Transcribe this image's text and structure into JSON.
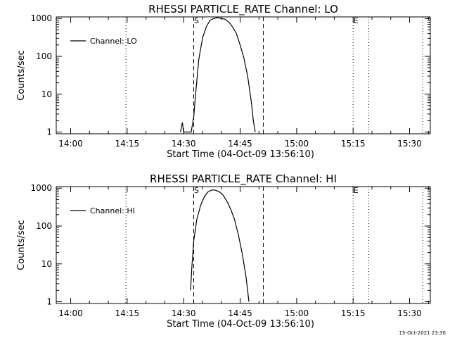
{
  "footer": {
    "timestamp": "15-Oct-2021 23:30"
  },
  "chart_data": [
    {
      "type": "line",
      "title": "RHESSI PARTICLE_RATE Channel: LO",
      "xlabel": "Start Time (04-Oct-09 13:56:10)",
      "ylabel": "Counts/sec",
      "yscale": "log",
      "ylim": [
        0.9,
        1100
      ],
      "xlim": [
        "13:56:10",
        "15:35:30"
      ],
      "xticks": [
        "14:00",
        "14:15",
        "14:30",
        "14:45",
        "15:00",
        "15:15",
        "15:30"
      ],
      "yticks": [
        "1",
        "10",
        "100",
        "1000"
      ],
      "legend": {
        "position": "top-left",
        "entries": [
          "Channel: LO"
        ]
      },
      "markers": [
        {
          "label": "S",
          "time": "14:32:40",
          "style": "dashed"
        },
        {
          "label": "",
          "time": "14:51:10",
          "style": "dashed"
        },
        {
          "label": "E",
          "time": "15:15:00",
          "style": "dotted"
        }
      ],
      "vlines_dotted": [
        "14:14:40",
        "15:19:10",
        "15:33:30"
      ],
      "series": [
        {
          "name": "Channel: LO",
          "points": [
            [
              "14:29:10",
              1.0
            ],
            [
              "14:29:40",
              1.8
            ],
            [
              "14:30:00",
              1.0
            ],
            [
              "14:32:00",
              1.0
            ],
            [
              "14:32:40",
              2.5
            ],
            [
              "14:33:10",
              10
            ],
            [
              "14:34:00",
              80
            ],
            [
              "14:35:00",
              300
            ],
            [
              "14:36:00",
              600
            ],
            [
              "14:37:00",
              900
            ],
            [
              "14:38:00",
              1000
            ],
            [
              "14:39:00",
              1050
            ],
            [
              "14:40:00",
              1000
            ],
            [
              "14:41:00",
              950
            ],
            [
              "14:42:00",
              800
            ],
            [
              "14:43:00",
              600
            ],
            [
              "14:44:00",
              400
            ],
            [
              "14:45:00",
              200
            ],
            [
              "14:46:00",
              90
            ],
            [
              "14:47:00",
              30
            ],
            [
              "14:48:00",
              6
            ],
            [
              "14:48:30",
              2
            ],
            [
              "14:49:00",
              1.0
            ]
          ]
        }
      ]
    },
    {
      "type": "line",
      "title": "RHESSI PARTICLE_RATE Channel: HI",
      "xlabel": "Start Time (04-Oct-09 13:56:10)",
      "ylabel": "Counts/sec",
      "yscale": "log",
      "ylim": [
        0.9,
        1100
      ],
      "xlim": [
        "13:56:10",
        "15:35:30"
      ],
      "xticks": [
        "14:00",
        "14:15",
        "14:30",
        "14:45",
        "15:00",
        "15:15",
        "15:30"
      ],
      "yticks": [
        "1",
        "10",
        "100",
        "1000"
      ],
      "legend": {
        "position": "top-left",
        "entries": [
          "Channel: HI"
        ]
      },
      "markers": [
        {
          "label": "S",
          "time": "14:32:40",
          "style": "dashed"
        },
        {
          "label": "",
          "time": "14:51:10",
          "style": "dashed"
        },
        {
          "label": "E",
          "time": "15:15:00",
          "style": "dotted"
        }
      ],
      "vlines_dotted": [
        "14:14:40",
        "15:19:10",
        "15:33:30"
      ],
      "series": [
        {
          "name": "Channel: HI",
          "points": [
            [
              "14:31:50",
              2
            ],
            [
              "14:32:10",
              8
            ],
            [
              "14:32:40",
              40
            ],
            [
              "14:33:30",
              150
            ],
            [
              "14:34:30",
              350
            ],
            [
              "14:35:30",
              600
            ],
            [
              "14:36:30",
              800
            ],
            [
              "14:37:30",
              900
            ],
            [
              "14:38:30",
              880
            ],
            [
              "14:39:30",
              800
            ],
            [
              "14:40:30",
              650
            ],
            [
              "14:41:30",
              450
            ],
            [
              "14:42:30",
              280
            ],
            [
              "14:43:30",
              150
            ],
            [
              "14:44:30",
              60
            ],
            [
              "14:45:30",
              20
            ],
            [
              "14:46:30",
              5
            ],
            [
              "14:47:00",
              2
            ],
            [
              "14:47:20",
              1.0
            ]
          ]
        }
      ]
    }
  ]
}
